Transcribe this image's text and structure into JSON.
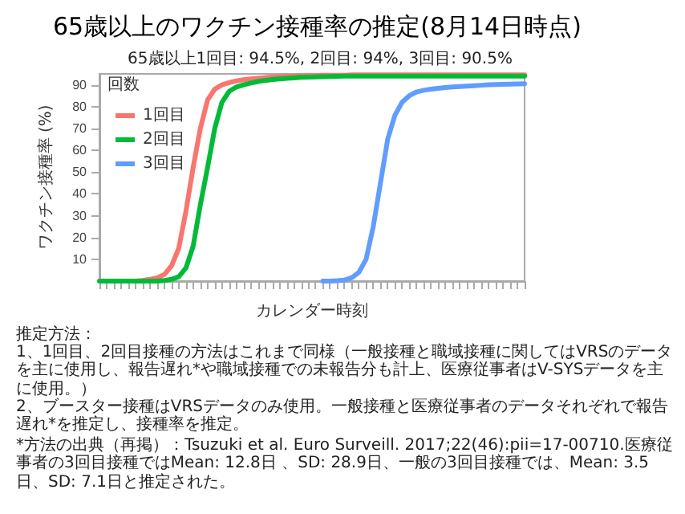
{
  "chart_data": {
    "type": "line",
    "title": "65歳以上のワクチン接種率の推定(8月14日時点)",
    "subtitle": "65歳以上1回目: 94.5%, 2回目: 94%, 3回目: 90.5%",
    "xlabel": "カレンダー時刻",
    "ylabel": "ワクチン接種率 (%)",
    "legend_title": "回数",
    "categories": [
      null,
      null,
      null,
      null,
      null,
      null,
      null,
      null,
      null,
      null,
      null,
      null,
      null,
      null,
      null,
      null,
      null,
      null,
      null,
      null,
      null,
      null,
      null,
      null,
      null,
      null,
      null,
      null,
      null,
      null,
      null,
      null,
      null,
      null,
      null,
      null,
      null,
      null,
      null,
      null,
      null,
      null,
      null,
      null,
      null,
      null,
      null,
      null,
      null,
      null,
      null,
      null,
      null,
      null,
      null,
      null,
      null,
      null,
      null,
      null
    ],
    "series": [
      {
        "name": "1回目",
        "color": "#f8766d",
        "values": [
          null,
          null,
          null,
          null,
          0,
          0,
          0.3,
          0.8,
          1.5,
          3,
          7,
          15,
          32,
          52,
          70,
          83,
          88,
          90,
          91,
          91.8,
          92.3,
          92.7,
          93,
          93.3,
          93.5,
          93.7,
          93.9,
          94,
          94.1,
          94.2,
          94.3,
          94.4,
          94.4,
          94.4,
          94.4,
          94.5,
          94.5,
          94.5,
          94.5,
          94.5,
          94.5,
          94.5,
          94.5,
          94.5,
          94.5,
          94.5,
          94.5,
          94.5,
          94.5,
          94.5,
          94.5,
          94.5,
          94.5,
          94.5,
          94.5,
          94.5,
          94.5,
          94.5,
          94.5,
          94.5
        ]
      },
      {
        "name": "2回目",
        "color": "#00ba38",
        "values": [
          0,
          0,
          0,
          0,
          0,
          0,
          0,
          0,
          0,
          0.3,
          0.8,
          2,
          6,
          16,
          35,
          52,
          70,
          82,
          87,
          89,
          90,
          90.8,
          91.5,
          92,
          92.4,
          92.7,
          93,
          93.2,
          93.4,
          93.5,
          93.6,
          93.7,
          93.8,
          93.9,
          94,
          94,
          94,
          94,
          94,
          94,
          94,
          94,
          94,
          94,
          94,
          94,
          94,
          94,
          94,
          94,
          94,
          94,
          94,
          94,
          94,
          94,
          94,
          94,
          94,
          94
        ]
      },
      {
        "name": "3回目",
        "color": "#619cff",
        "values": [
          null,
          null,
          null,
          null,
          null,
          null,
          null,
          null,
          null,
          null,
          null,
          null,
          null,
          null,
          null,
          null,
          null,
          null,
          null,
          null,
          null,
          null,
          null,
          null,
          null,
          null,
          null,
          null,
          null,
          null,
          null,
          0,
          0,
          0.2,
          0.5,
          1.5,
          4,
          10,
          25,
          45,
          65,
          76,
          82,
          85,
          86.7,
          87.5,
          88,
          88.4,
          88.7,
          89,
          89.2,
          89.4,
          89.6,
          89.8,
          90,
          90.1,
          90.2,
          90.3,
          90.4,
          90.5
        ]
      }
    ],
    "ylim": [
      0,
      95
    ],
    "yticks": [
      10,
      20,
      30,
      40,
      50,
      60,
      70,
      80,
      90
    ],
    "grid": false,
    "legend": "top left",
    "marker": "none",
    "line_style": "solid",
    "annotations": [
      "推定方法：",
      "1、1回目、2回目接種の方法はこれまで同様（一般接種と職域接種に関してはVRSのデータを主に使用し、報告遅れ*や職域接種での未報告分も計上、医療従事者はV-SYSデータを主に使用。）",
      "2、ブースター接種はVRSデータのみ使用。一般接種と医療従事者のデータそれぞれで報告遅れ*を推定し、接種率を推定。",
      "*方法の出典（再掲）：Tsuzuki et al. Euro Surveill. 2017;22(46):pii=17-00710.医療従事者の3回目接種ではMean: 12.8日 、SD: 28.9日、一般の3回目接種では、Mean: 3.5日、SD: 7.1日と推定された。"
    ]
  }
}
